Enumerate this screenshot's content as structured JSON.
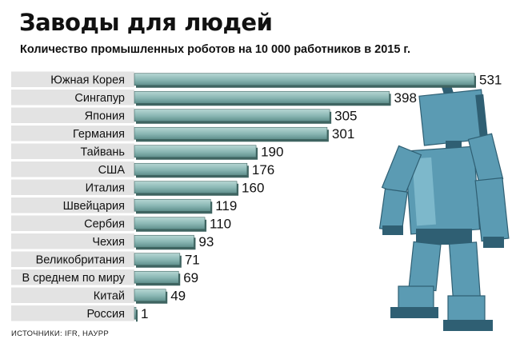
{
  "colors": {
    "bar_top": "#b7d7d4",
    "bar_mid": "#89b6b3",
    "bar_bottom": "#5f8f8c",
    "bar_shadow": "#3f6461",
    "label_panel": "#e3e3e3",
    "robot_main": "#5b9bb3",
    "robot_dark": "#2f5f73",
    "robot_light": "#8cc4d6"
  },
  "icons": {
    "decoration": "robot-illustration"
  },
  "source": "ИСТОЧНИКИ: IFR, НАУРР",
  "chart_data": {
    "type": "bar",
    "orientation": "horizontal",
    "title": "Заводы для людей",
    "subtitle": "Количество промышленных роботов на 10 000 работников в 2015 г.",
    "xlabel": "",
    "ylabel": "",
    "xlim": [
      0,
      531
    ],
    "grid": false,
    "legend": "none",
    "categories": [
      "Южная Корея",
      "Сингапур",
      "Япония",
      "Германия",
      "Тайвань",
      "США",
      "Италия",
      "Швейцария",
      "Сербия",
      "Чехия",
      "Великобритания",
      "В среднем по миру",
      "Китай",
      "Россия"
    ],
    "values": [
      531,
      398,
      305,
      301,
      190,
      176,
      160,
      119,
      110,
      93,
      71,
      69,
      49,
      1
    ],
    "value_labels": [
      "531",
      "398",
      "305",
      "301",
      "190",
      "176",
      "160",
      "119",
      "110",
      "93",
      "71",
      "69",
      "49",
      "1"
    ]
  }
}
